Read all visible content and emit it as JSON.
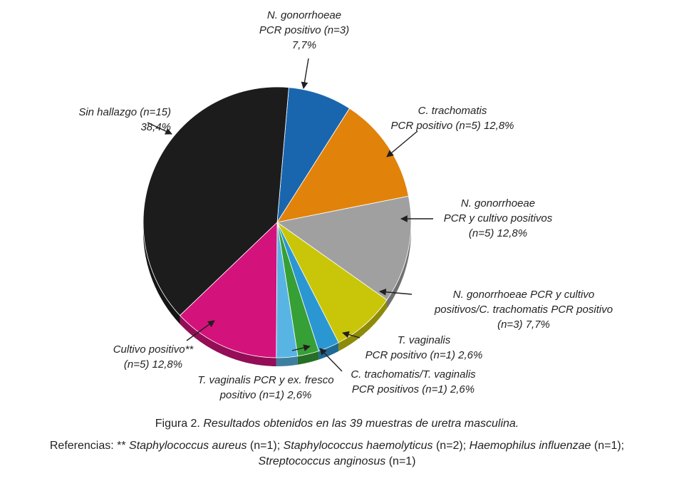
{
  "chart_data": {
    "type": "pie",
    "total_n": 39,
    "slices": [
      {
        "label": "N. gonorrhoeae PCR positivo",
        "n": 3,
        "pct": 7.7,
        "color": "#1a66ae"
      },
      {
        "label": "C. trachomatis PCR positivo",
        "n": 5,
        "pct": 12.8,
        "color": "#e1820b"
      },
      {
        "label": "N. gonorrhoeae PCR y cultivo positivos",
        "n": 5,
        "pct": 12.8,
        "color": "#a0a0a0"
      },
      {
        "label": "N. gonorrhoeae PCR y cultivo positivos/C. trachomatis PCR positivo",
        "n": 3,
        "pct": 7.7,
        "color": "#c9c60a"
      },
      {
        "label": "T. vaginalis PCR positivo",
        "n": 1,
        "pct": 2.6,
        "color": "#2b97d2"
      },
      {
        "label": "C. trachomatis/T. vaginalis PCR positivos",
        "n": 1,
        "pct": 2.6,
        "color": "#369f36"
      },
      {
        "label": "T. vaginalis PCR y ex. fresco positivo",
        "n": 1,
        "pct": 2.6,
        "color": "#58b5e3"
      },
      {
        "label": "Cultivo positivo**",
        "n": 5,
        "pct": 12.8,
        "color": "#d4127c"
      },
      {
        "label": "Sin hallazgo",
        "n": 15,
        "pct": 38.4,
        "color": "#1c1c1c"
      }
    ]
  },
  "labels": {
    "ng_pcr": [
      "N. gonorrhoeae",
      "PCR positivo (n=3)",
      "7,7%"
    ],
    "ct_pcr": [
      "C. trachomatis",
      "PCR positivo (n=5) 12,8%"
    ],
    "ng_pcr_cult": [
      "N. gonorrhoeae",
      "PCR y cultivo positivos",
      "(n=5) 12,8%"
    ],
    "ng_ct": [
      "N. gonorrhoeae PCR y cultivo",
      "positivos/C. trachomatis PCR positivo",
      "(n=3) 7,7%"
    ],
    "tv_pcr": [
      "T. vaginalis",
      "PCR positivo (n=1) 2,6%"
    ],
    "ct_tv": [
      "C. trachomatis/T. vaginalis",
      "PCR positivos (n=1) 2,6%"
    ],
    "tv_fresco": [
      "T. vaginalis PCR y ex. fresco",
      "positivo (n=1) 2,6%"
    ],
    "cultivo": [
      "Cultivo positivo**",
      "(n=5) 12,8%"
    ],
    "sin": [
      "Sin hallazgo (n=15)",
      "38,4%"
    ]
  },
  "caption": {
    "prefix": "Figura 2. ",
    "text": "Resultados obtenidos en las 39 muestras de uretra masculina."
  },
  "references": {
    "lead": "Referencias: ** ",
    "org1": "Staphylococcus aureus",
    "n1": " (n=1); ",
    "org2": "Staphylococcus haemolyticus",
    "n2": " (n=2); ",
    "org3": "Haemophilus influenzae",
    "n3": " (n=1);",
    "org4": "Streptococcus anginosus",
    "n4": " (n=1)"
  }
}
